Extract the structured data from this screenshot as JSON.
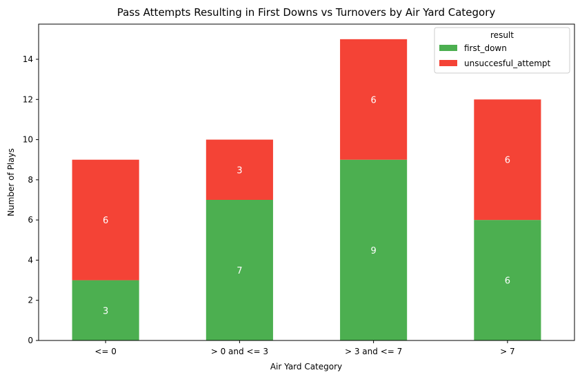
{
  "chart_data": {
    "type": "bar",
    "stacked": true,
    "title": "Pass Attempts Resulting in First Downs vs Turnovers by Air Yard Category",
    "xlabel": "Air Yard Category",
    "ylabel": "Number of Plays",
    "categories": [
      "<= 0",
      "> 0 and <= 3",
      "> 3 and <= 7",
      "> 7"
    ],
    "series": [
      {
        "name": "first_down",
        "values": [
          3,
          7,
          9,
          6
        ],
        "color": "#4caf50"
      },
      {
        "name": "unsuccesful_attempt",
        "values": [
          6,
          3,
          6,
          6
        ],
        "color": "#f44336"
      }
    ],
    "ylim": [
      0,
      15.75
    ],
    "yticks": [
      0,
      2,
      4,
      6,
      8,
      10,
      12,
      14
    ],
    "grid": false,
    "legend": {
      "title": "result",
      "position": "top-right"
    },
    "data_labels": true
  }
}
